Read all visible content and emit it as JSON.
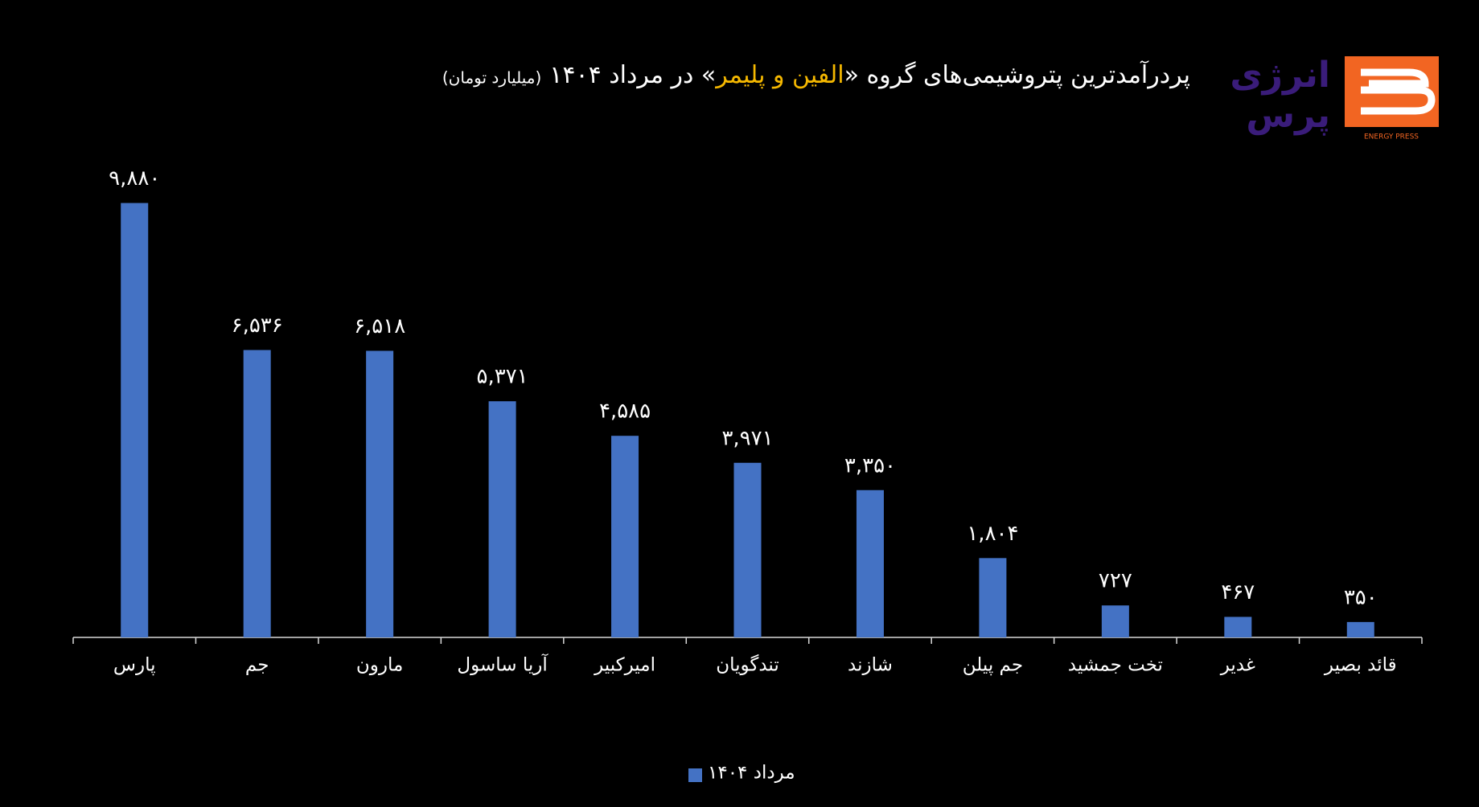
{
  "chart_data": {
    "type": "bar",
    "title": "پردرآمدترین پتروشیمی‌های گروه «",
    "title_highlight": "الفین و پلیمر",
    "title_end": "» در مرداد ۱۴۰۴",
    "subtitle": "(میلیارد تومان)",
    "logo": {
      "line1": "انرژی",
      "line2": "پرس",
      "caption": "ENERGY PRESS"
    },
    "categories": [
      "پارس",
      "جم",
      "مارون",
      "آریا ساسول",
      "امیرکبیر",
      "تندگویان",
      "شازند",
      "جم پیلن",
      "تخت جمشید",
      "غدیر",
      "قائد بصیر"
    ],
    "series": [
      {
        "name": "مرداد ۱۴۰۴",
        "color": "#4472c4",
        "values": [
          9880,
          6536,
          6518,
          5371,
          4585,
          3971,
          3350,
          1804,
          727,
          467,
          350
        ],
        "value_labels": [
          "۹,۸۸۰",
          "۶,۵۳۶",
          "۶,۵۱۸",
          "۵,۳۷۱",
          "۴,۵۸۵",
          "۳,۹۷۱",
          "۳,۳۵۰",
          "۱,۸۰۴",
          "۷۲۷",
          "۴۶۷",
          "۳۵۰"
        ]
      }
    ],
    "ylim": [
      0,
      10000
    ],
    "legend": "bottom"
  }
}
